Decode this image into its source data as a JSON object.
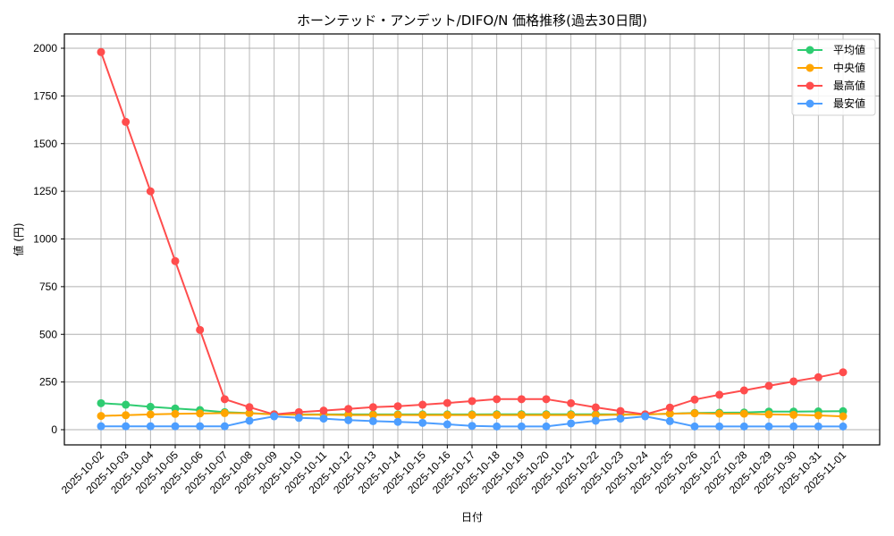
{
  "chart_data": {
    "type": "line",
    "title": "ホーンテッド・アンデット/DIFO/N 価格推移(過去30日間)",
    "xlabel": "日付",
    "ylabel": "値 (円)",
    "ylim": [
      -75,
      2075
    ],
    "yticks": [
      0,
      250,
      500,
      750,
      1000,
      1250,
      1500,
      1750,
      2000
    ],
    "grid": true,
    "legend_position": "upper right",
    "x": [
      "2025-10-02",
      "2025-10-03",
      "2025-10-04",
      "2025-10-05",
      "2025-10-06",
      "2025-10-07",
      "2025-10-08",
      "2025-10-09",
      "2025-10-10",
      "2025-10-11",
      "2025-10-12",
      "2025-10-13",
      "2025-10-14",
      "2025-10-15",
      "2025-10-16",
      "2025-10-17",
      "2025-10-18",
      "2025-10-19",
      "2025-10-20",
      "2025-10-21",
      "2025-10-22",
      "2025-10-23",
      "2025-10-24",
      "2025-10-25",
      "2025-10-26",
      "2025-10-27",
      "2025-10-28",
      "2025-10-29",
      "2025-10-30",
      "2025-10-31",
      "2025-11-01"
    ],
    "series": [
      {
        "name": "平均値",
        "color": "#2ecc71",
        "values": [
          139,
          131,
          120,
          111,
          103,
          92,
          87,
          81,
          80,
          80,
          80,
          80,
          80,
          80,
          80,
          80,
          81,
          81,
          81,
          81,
          81,
          80,
          80,
          84,
          88,
          89,
          90,
          95,
          95,
          96,
          97
        ]
      },
      {
        "name": "中央値",
        "color": "#ffa500",
        "values": [
          72,
          76,
          80,
          83,
          85,
          87,
          86,
          80,
          78,
          78,
          77,
          77,
          77,
          77,
          77,
          77,
          77,
          77,
          77,
          77,
          77,
          78,
          80,
          84,
          86,
          84,
          84,
          80,
          78,
          75,
          70
        ]
      },
      {
        "name": "最高値",
        "color": "#ff4d4d",
        "values": [
          1980,
          1614,
          1250,
          884,
          523,
          160,
          118,
          80,
          92,
          100,
          109,
          118,
          123,
          131,
          140,
          150,
          160,
          160,
          160,
          139,
          117,
          98,
          80,
          116,
          158,
          183,
          206,
          230,
          253,
          275,
          301
        ]
      },
      {
        "name": "最安値",
        "color": "#4d9eff",
        "values": [
          18,
          18,
          18,
          18,
          18,
          18,
          47,
          70,
          62,
          58,
          50,
          45,
          41,
          36,
          28,
          20,
          17,
          17,
          17,
          33,
          47,
          58,
          70,
          45,
          17,
          17,
          17,
          17,
          17,
          17,
          17
        ]
      }
    ]
  }
}
